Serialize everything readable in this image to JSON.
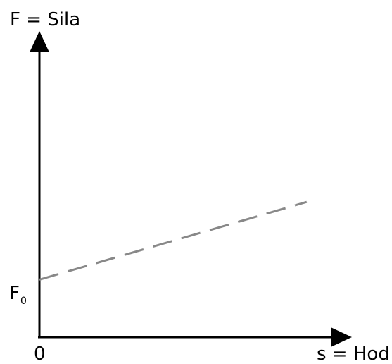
{
  "chart_data": {
    "type": "line",
    "ylabel": "F = Sila",
    "xlabel": "s = Hod",
    "origin_label": "0",
    "y_intercept_label": {
      "main": "F",
      "sub": "0"
    },
    "series": [
      {
        "x": [
          0,
          1
        ],
        "y": [
          0.2,
          0.5
        ],
        "style": "dashed",
        "color": "#888888"
      }
    ],
    "xlim": [
      0,
      1.0
    ],
    "ylim": [
      0,
      1.0
    ],
    "grid": false,
    "axis_color": "#000000"
  }
}
